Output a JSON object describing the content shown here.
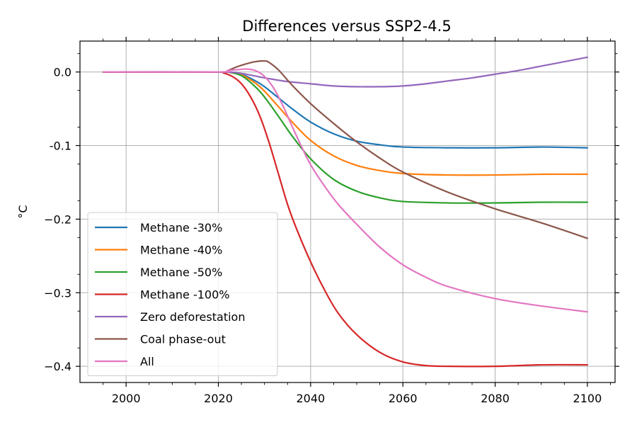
{
  "chart_data": {
    "type": "line",
    "title": "Differences versus SSP2-4.5",
    "xlabel": "",
    "ylabel": "°C",
    "xlim": [
      1990,
      2106
    ],
    "ylim": [
      -0.422,
      0.042
    ],
    "x_ticks": [
      2000,
      2020,
      2040,
      2060,
      2080,
      2100
    ],
    "x_tick_labels": [
      "2000",
      "2020",
      "2040",
      "2060",
      "2080",
      "2100"
    ],
    "y_ticks": [
      0.0,
      -0.1,
      -0.2,
      -0.3,
      -0.4
    ],
    "y_tick_labels": [
      "0.0",
      "-0.1",
      "−0.2",
      "−0.3",
      "−0.4"
    ],
    "grid": true,
    "legend_position": "lower-left",
    "series": [
      {
        "name": "Methane -30%",
        "color": "#1f77b4",
        "x": [
          1995,
          2020,
          2022,
          2025,
          2028,
          2030,
          2033,
          2036,
          2040,
          2045,
          2050,
          2055,
          2060,
          2070,
          2080,
          2090,
          2100
        ],
        "y": [
          0.0,
          0.0,
          0.0,
          -0.003,
          -0.012,
          -0.02,
          -0.035,
          -0.05,
          -0.068,
          -0.084,
          -0.094,
          -0.099,
          -0.102,
          -0.103,
          -0.103,
          -0.102,
          -0.103
        ]
      },
      {
        "name": "Methane -40%",
        "color": "#ff7f0e",
        "x": [
          1995,
          2020,
          2022,
          2025,
          2028,
          2030,
          2033,
          2036,
          2040,
          2045,
          2050,
          2055,
          2060,
          2070,
          2080,
          2090,
          2100
        ],
        "y": [
          0.0,
          0.0,
          0.0,
          -0.004,
          -0.015,
          -0.026,
          -0.047,
          -0.068,
          -0.093,
          -0.114,
          -0.127,
          -0.134,
          -0.138,
          -0.14,
          -0.14,
          -0.139,
          -0.139
        ]
      },
      {
        "name": "Methane -50%",
        "color": "#2ca02c",
        "x": [
          1995,
          2020,
          2022,
          2025,
          2028,
          2030,
          2033,
          2036,
          2040,
          2045,
          2050,
          2055,
          2060,
          2070,
          2080,
          2090,
          2100
        ],
        "y": [
          0.0,
          0.0,
          0.0,
          -0.005,
          -0.02,
          -0.034,
          -0.06,
          -0.087,
          -0.118,
          -0.146,
          -0.162,
          -0.171,
          -0.176,
          -0.178,
          -0.178,
          -0.177,
          -0.177
        ]
      },
      {
        "name": "Methane -100%",
        "color": "#d62728",
        "x": [
          1995,
          2020,
          2021,
          2023,
          2025,
          2027,
          2029,
          2031,
          2033,
          2035,
          2037,
          2040,
          2043,
          2046,
          2050,
          2055,
          2060,
          2065,
          2070,
          2080,
          2090,
          2100
        ],
        "y": [
          0.0,
          0.0,
          -0.001,
          -0.006,
          -0.016,
          -0.034,
          -0.06,
          -0.096,
          -0.138,
          -0.18,
          -0.214,
          -0.258,
          -0.296,
          -0.328,
          -0.357,
          -0.381,
          -0.394,
          -0.399,
          -0.4,
          -0.4,
          -0.398,
          -0.398
        ]
      },
      {
        "name": "Zero deforestation",
        "color": "#9467bd",
        "x": [
          1995,
          2020,
          2025,
          2030,
          2035,
          2040,
          2045,
          2050,
          2055,
          2060,
          2065,
          2070,
          2075,
          2080,
          2085,
          2090,
          2095,
          2100
        ],
        "y": [
          0.0,
          0.0,
          -0.002,
          -0.008,
          -0.013,
          -0.016,
          -0.019,
          -0.02,
          -0.02,
          -0.019,
          -0.016,
          -0.012,
          -0.008,
          -0.003,
          0.002,
          0.008,
          0.014,
          0.02
        ]
      },
      {
        "name": "Coal phase-out",
        "color": "#8c564b",
        "x": [
          1995,
          2020,
          2022,
          2024,
          2026,
          2028,
          2030,
          2031,
          2033,
          2036,
          2040,
          2045,
          2050,
          2055,
          2060,
          2070,
          2080,
          2090,
          2100
        ],
        "y": [
          0.0,
          0.0,
          0.002,
          0.007,
          0.011,
          0.014,
          0.015,
          0.013,
          0.003,
          -0.018,
          -0.043,
          -0.07,
          -0.095,
          -0.117,
          -0.136,
          -0.164,
          -0.186,
          -0.205,
          -0.226
        ]
      },
      {
        "name": "All",
        "color": "#e377c2",
        "x": [
          1995,
          2020,
          2022,
          2024,
          2026,
          2028,
          2030,
          2032,
          2034,
          2036,
          2038,
          2040,
          2043,
          2046,
          2050,
          2055,
          2060,
          2065,
          2070,
          2080,
          2090,
          2100
        ],
        "y": [
          0.0,
          0.0,
          0.002,
          0.003,
          0.004,
          0.002,
          -0.006,
          -0.022,
          -0.046,
          -0.074,
          -0.101,
          -0.126,
          -0.155,
          -0.18,
          -0.207,
          -0.238,
          -0.262,
          -0.279,
          -0.292,
          -0.308,
          -0.318,
          -0.326
        ]
      }
    ]
  }
}
